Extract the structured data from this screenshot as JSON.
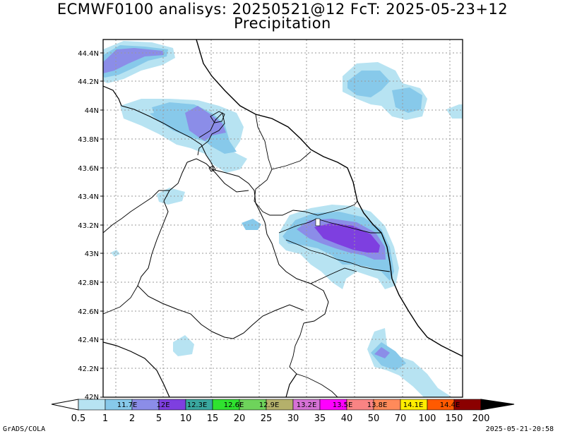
{
  "title": {
    "line1": "ECMWF0100 analisys: 20250521@12 FcT: 2025-05-23+12",
    "line2": "Precipitation"
  },
  "axis": {
    "lat_labels": [
      "44.4N",
      "44.2N",
      "44N",
      "43.8N",
      "43.6N",
      "43.4N",
      "43.2N",
      "43N",
      "42.8N",
      "42.6N",
      "42.4N",
      "42.2N",
      "42N"
    ],
    "lat_values": [
      44.4,
      44.2,
      44.0,
      43.8,
      43.6,
      43.4,
      43.2,
      43.0,
      42.8,
      42.6,
      42.4,
      42.2,
      42.0
    ],
    "lon_gridlines": [
      11.7,
      12.0,
      12.3,
      12.6,
      12.9,
      13.2,
      13.5,
      13.8,
      14.1,
      14.4
    ],
    "lon_range": [
      11.5,
      14.5
    ],
    "lat_range": [
      42.0,
      44.45
    ]
  },
  "colorbar": {
    "lon_labels": [
      "11.7E",
      "12E",
      "12.3E",
      "12.6E",
      "12.9E",
      "13.2E",
      "13.5E",
      "13.8E",
      "14.1E",
      "14.4E"
    ],
    "values": [
      "0.5",
      "1",
      "2",
      "5",
      "10",
      "15",
      "20",
      "25",
      "30",
      "35",
      "40",
      "50",
      "70",
      "100",
      "150",
      "200"
    ],
    "colors": [
      "#ffffff",
      "#b7e3f2",
      "#87c9ea",
      "#8b8de8",
      "#7e3fe0",
      "#3aa8a0",
      "#2fe22f",
      "#6ed35b",
      "#b4b06b",
      "#d672d6",
      "#ff00ff",
      "#f98484",
      "#ff8a5a",
      "#ffee00",
      "#ff5a00",
      "#e60000",
      "#8b0000"
    ]
  },
  "footer": {
    "left": "GrADS/COLA",
    "right": "2025-05-21-20:58"
  },
  "map_label": "□"
}
